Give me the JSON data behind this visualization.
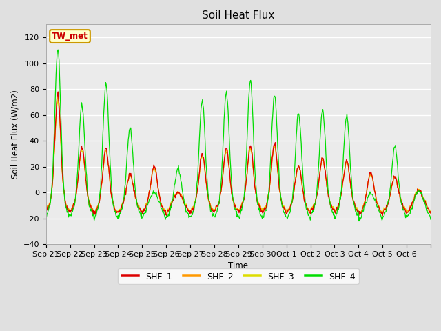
{
  "title": "Soil Heat Flux",
  "ylabel": "Soil Heat Flux (W/m2)",
  "xlabel": "Time",
  "ylim": [
    -40,
    130
  ],
  "background_color": "#e0e0e0",
  "plot_bg_color": "#ebebeb",
  "annotation_text": "TW_met",
  "annotation_color": "#cc0000",
  "annotation_bg": "#ffffcc",
  "annotation_border": "#cc9900",
  "colors": {
    "SHF_1": "#dd0000",
    "SHF_2": "#ff9900",
    "SHF_3": "#dddd00",
    "SHF_4": "#00dd00"
  },
  "legend_labels": [
    "SHF_1",
    "SHF_2",
    "SHF_3",
    "SHF_4"
  ],
  "xtick_labels": [
    "Sep 21",
    "Sep 22",
    "Sep 23",
    "Sep 24",
    "Sep 25",
    "Sep 26",
    "Sep 27",
    "Sep 28",
    "Sep 29",
    "Sep 30",
    "Oct 1",
    "Oct 2",
    "Oct 3",
    "Oct 4",
    "Oct 5",
    "Oct 6"
  ],
  "day_peaks_shf123": [
    75,
    35,
    35,
    14,
    21,
    0,
    30,
    33,
    35,
    38,
    22,
    25,
    25,
    17,
    12,
    2
  ],
  "day_peaks_shf4": [
    110,
    67,
    85,
    50,
    0,
    20,
    71,
    76,
    86,
    75,
    62,
    62,
    59,
    0,
    35,
    2
  ],
  "night_min": -20,
  "n_days": 16,
  "intervals_per_day": 48
}
